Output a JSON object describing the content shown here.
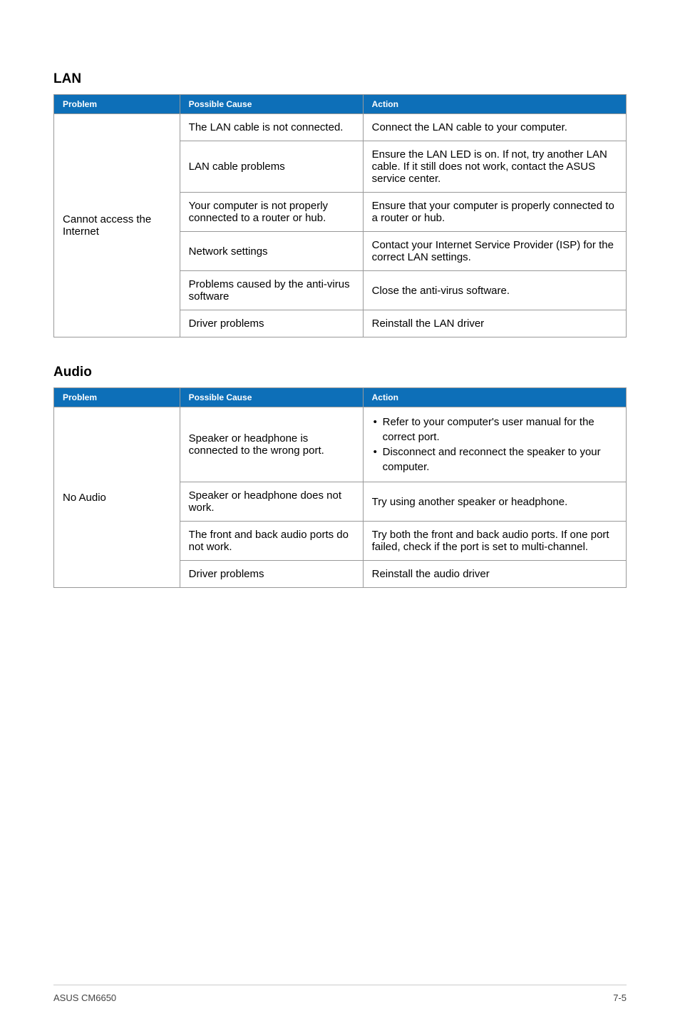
{
  "lanSection": {
    "heading": "LAN",
    "headers": {
      "problem": "Problem",
      "cause": "Possible Cause",
      "action": "Action"
    },
    "problem": "Cannot access the Internet",
    "rows": [
      {
        "cause": "The LAN cable is not connected.",
        "action": "Connect the LAN cable to your computer."
      },
      {
        "cause": "LAN cable problems",
        "action": "Ensure the LAN LED is on. If not, try another LAN cable. If it still does not work, contact the ASUS service center."
      },
      {
        "cause": "Your computer is not properly connected to a router or hub.",
        "action": "Ensure that your computer is properly connected to a router or hub."
      },
      {
        "cause": "Network settings",
        "action": "Contact your Internet Service Provider (ISP) for the correct LAN settings."
      },
      {
        "cause": "Problems caused by the anti-virus software",
        "action": "Close the anti-virus software."
      },
      {
        "cause": "Driver problems",
        "action": "Reinstall the LAN driver"
      }
    ]
  },
  "audioSection": {
    "heading": "Audio",
    "headers": {
      "problem": "Problem",
      "cause": "Possible Cause",
      "action": "Action"
    },
    "problem": "No Audio",
    "rows": [
      {
        "cause": "Speaker or headphone is connected to the wrong port.",
        "bullets": [
          "Refer to your computer's user manual for the correct port.",
          "Disconnect and reconnect the speaker to your computer."
        ]
      },
      {
        "cause": "Speaker or headphone does not work.",
        "action": "Try using another speaker or headphone."
      },
      {
        "cause": "The front and back audio ports do not work.",
        "action": "Try both the front and back audio ports. If one port failed, check if the port is set to multi-channel."
      },
      {
        "cause": "Driver problems",
        "action": "Reinstall the audio driver"
      }
    ]
  },
  "footer": {
    "left": "ASUS CM6650",
    "right": "7-5"
  },
  "colors": {
    "headerBg": "#0d6fb8",
    "headerText": "#ffffff",
    "border": "#999999",
    "text": "#000000",
    "footerText": "#444444",
    "footerBorder": "#cccccc"
  }
}
